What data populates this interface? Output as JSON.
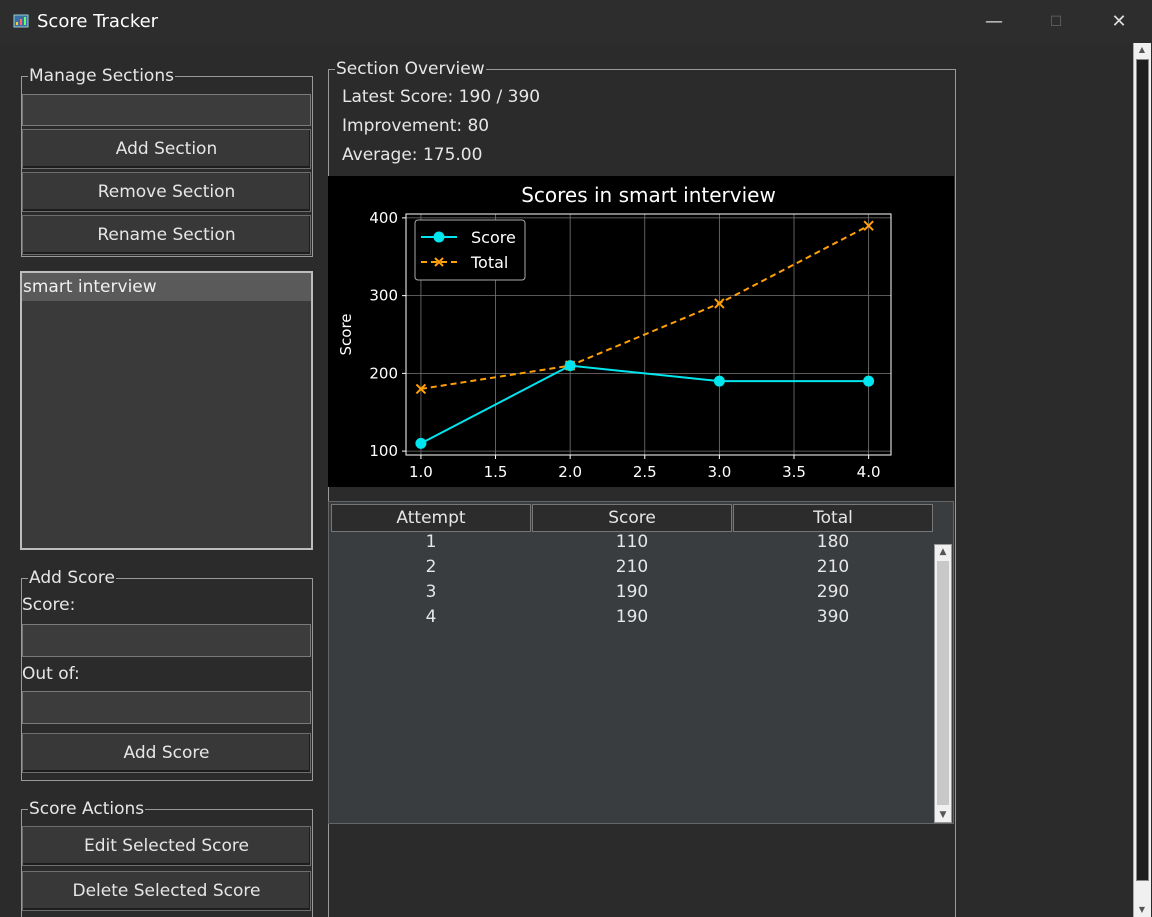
{
  "window": {
    "title": "Score Tracker",
    "minimize_glyph": "—",
    "maximize_glyph": "☐",
    "close_glyph": "✕"
  },
  "manage_sections": {
    "legend": "Manage Sections",
    "name_input_value": "",
    "add_label": "Add Section",
    "remove_label": "Remove Section",
    "rename_label": "Rename Section"
  },
  "sections_list": {
    "items": [
      "smart interview"
    ],
    "selected_index": 0
  },
  "add_score": {
    "legend": "Add Score",
    "score_label": "Score:",
    "score_value": "",
    "outof_label": "Out of:",
    "outof_value": "",
    "button_label": "Add Score"
  },
  "score_actions": {
    "legend": "Score Actions",
    "edit_label": "Edit Selected Score",
    "delete_label": "Delete Selected Score"
  },
  "overview": {
    "legend": "Section Overview",
    "latest": "Latest Score: 190 / 390",
    "improvement": "Improvement: 80",
    "average": "Average: 175.00"
  },
  "chart_data": {
    "type": "line",
    "title": "Scores in smart interview",
    "xlabel": "",
    "ylabel": "Score",
    "xlim": [
      0.9,
      4.15
    ],
    "ylim": [
      95,
      405
    ],
    "xticks": [
      "1.0",
      "1.5",
      "2.0",
      "2.5",
      "3.0",
      "3.5",
      "4.0"
    ],
    "yticks": [
      "100",
      "200",
      "300",
      "400"
    ],
    "grid": true,
    "legend_position": "top-left",
    "series": [
      {
        "name": "Score",
        "x": [
          1,
          2,
          3,
          4
        ],
        "values": [
          110,
          210,
          190,
          190
        ],
        "color": "#00e5ee",
        "marker": "circle",
        "linestyle": "solid"
      },
      {
        "name": "Total",
        "x": [
          1,
          2,
          3,
          4
        ],
        "values": [
          180,
          210,
          290,
          390
        ],
        "color": "#ff9f0a",
        "marker": "x",
        "linestyle": "dashed"
      }
    ]
  },
  "table": {
    "columns": [
      "Attempt",
      "Score",
      "Total"
    ],
    "rows": [
      [
        "1",
        "110",
        "180"
      ],
      [
        "2",
        "210",
        "210"
      ],
      [
        "3",
        "190",
        "290"
      ],
      [
        "4",
        "190",
        "390"
      ]
    ]
  }
}
